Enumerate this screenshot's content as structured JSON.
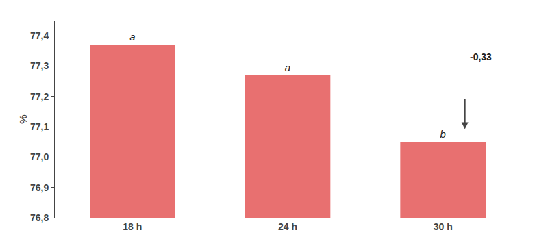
{
  "chart_data": {
    "type": "bar",
    "categories": [
      "18 h",
      "24 h",
      "30 h"
    ],
    "values": [
      77.37,
      77.27,
      77.05
    ],
    "color": "#e87070",
    "ylabel": "%",
    "ylim": [
      76.8,
      77.45
    ],
    "yticks": [
      {
        "value": 76.8,
        "label": "76,8"
      },
      {
        "value": 76.9,
        "label": "76,9"
      },
      {
        "value": 77.0,
        "label": "77,0"
      },
      {
        "value": 77.1,
        "label": "77,1"
      },
      {
        "value": 77.2,
        "label": "77,2"
      },
      {
        "value": 77.3,
        "label": "77,3"
      },
      {
        "value": 77.4,
        "label": "77,4"
      }
    ],
    "grid": false,
    "annotations": [
      {
        "category": "18 h",
        "text": "a"
      },
      {
        "category": "24 h",
        "text": "a"
      },
      {
        "category": "30 h",
        "text": "b"
      },
      {
        "category": "30 h",
        "text": "-0,33"
      }
    ]
  }
}
